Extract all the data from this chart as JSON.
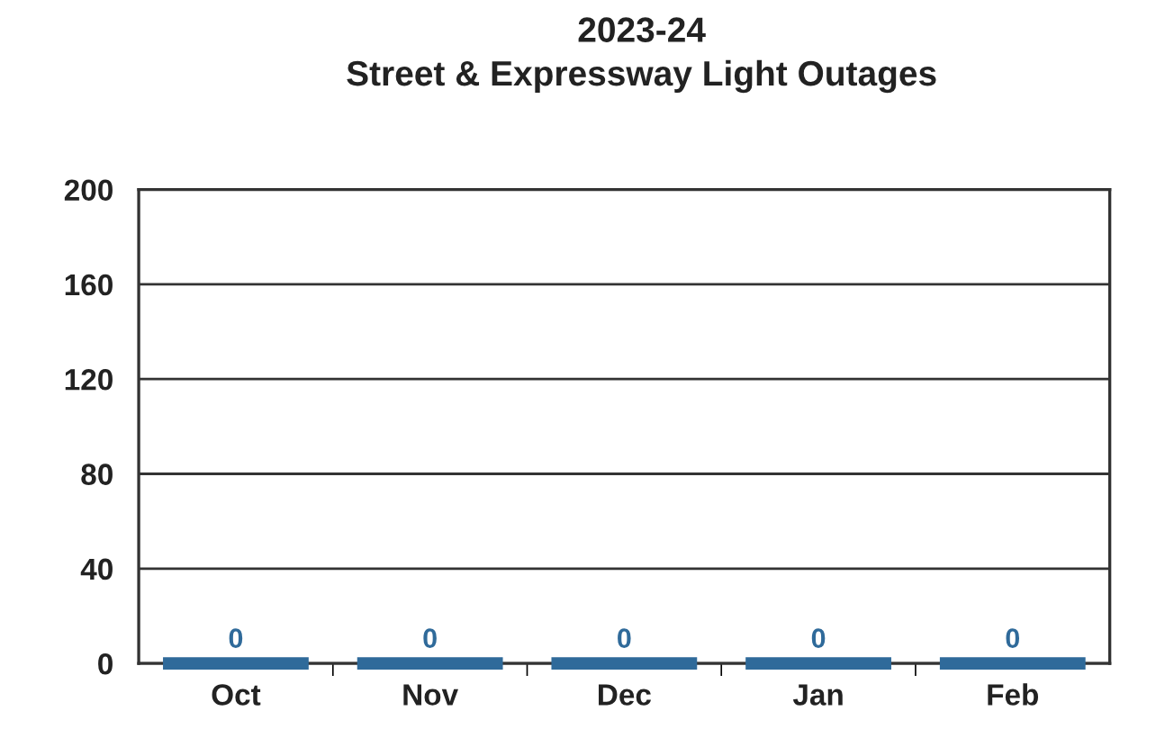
{
  "chart_data": {
    "type": "bar",
    "title": "2023-24",
    "subtitle": "Street & Expressway Light Outages",
    "categories": [
      "Oct",
      "Nov",
      "Dec",
      "Jan",
      "Feb"
    ],
    "values": [
      0,
      0,
      0,
      0,
      0
    ],
    "color": "#2f6a9a",
    "ylim": [
      0,
      200
    ],
    "yticks": [
      0,
      40,
      80,
      120,
      160,
      200
    ],
    "grid": "y",
    "data_labels": true
  }
}
